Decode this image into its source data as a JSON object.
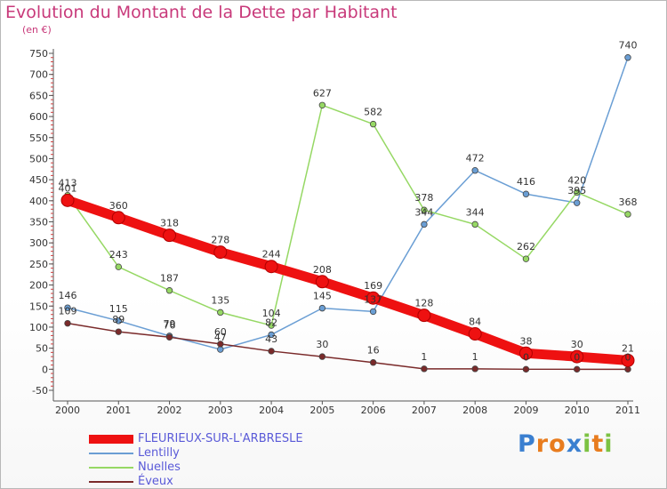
{
  "title": "Evolution du Montant de la Dette par Habitant",
  "subtitle": "(en €)",
  "logo": {
    "text": "Proxiti",
    "letters": [
      {
        "ch": "P",
        "color": "#3a7fd0"
      },
      {
        "ch": "r",
        "color": "#e87c1e"
      },
      {
        "ch": "o",
        "color": "#e87c1e"
      },
      {
        "ch": "x",
        "color": "#3a7fd0"
      },
      {
        "ch": "i",
        "color": "#7cc242"
      },
      {
        "ch": "t",
        "color": "#e87c1e"
      },
      {
        "ch": "i",
        "color": "#7cc242"
      }
    ]
  },
  "chart_data": {
    "type": "line",
    "title": "Evolution du Montant de la Dette par Habitant",
    "subtitle": "(en €)",
    "x": [
      "2000",
      "2001",
      "2002",
      "2003",
      "2004",
      "2005",
      "2006",
      "2007",
      "2008",
      "2009",
      "2010",
      "2011"
    ],
    "y_ticks": [
      "-50",
      "0",
      "50",
      "100",
      "150",
      "200",
      "250",
      "300",
      "350",
      "400",
      "450",
      "500",
      "550",
      "600",
      "650",
      "700",
      "750"
    ],
    "ylim": [
      -50,
      750
    ],
    "grid": false,
    "legend_position": "bottom-left",
    "series": [
      {
        "name": "FLEURIEUX-SUR-L'ARBRESLE",
        "color": "#ee1111",
        "values": [
          401,
          360,
          318,
          278,
          244,
          208,
          169,
          128,
          84,
          38,
          30,
          21
        ],
        "labels": [
          "401",
          "360",
          "318",
          "278",
          "244",
          "208",
          "169",
          "128",
          "84",
          "38",
          "30",
          "21"
        ]
      },
      {
        "name": "Lentilly",
        "color": "#6a9ed4",
        "values": [
          146,
          115,
          79,
          47,
          82,
          145,
          137,
          344,
          472,
          416,
          395,
          740
        ],
        "labels": [
          "146",
          "115",
          "79",
          "47",
          "82",
          "145",
          "137",
          "344",
          "472",
          "416",
          "395",
          "740"
        ]
      },
      {
        "name": "Nuelles",
        "color": "#96d864",
        "values": [
          413,
          243,
          187,
          135,
          104,
          627,
          582,
          378,
          344,
          262,
          420,
          368
        ],
        "labels": [
          "413",
          "243",
          "187",
          "135",
          "104",
          "627",
          "582",
          "378",
          "344",
          "262",
          "420",
          "368"
        ]
      },
      {
        "name": "Éveux",
        "color": "#7a2a2a",
        "values": [
          109,
          89,
          76,
          60,
          43,
          30,
          16,
          1,
          1,
          0,
          0,
          0
        ],
        "labels": [
          "109",
          "89",
          "76",
          "60",
          "43",
          "30",
          "16",
          "1",
          "1",
          "0",
          "0",
          "0"
        ]
      }
    ]
  }
}
